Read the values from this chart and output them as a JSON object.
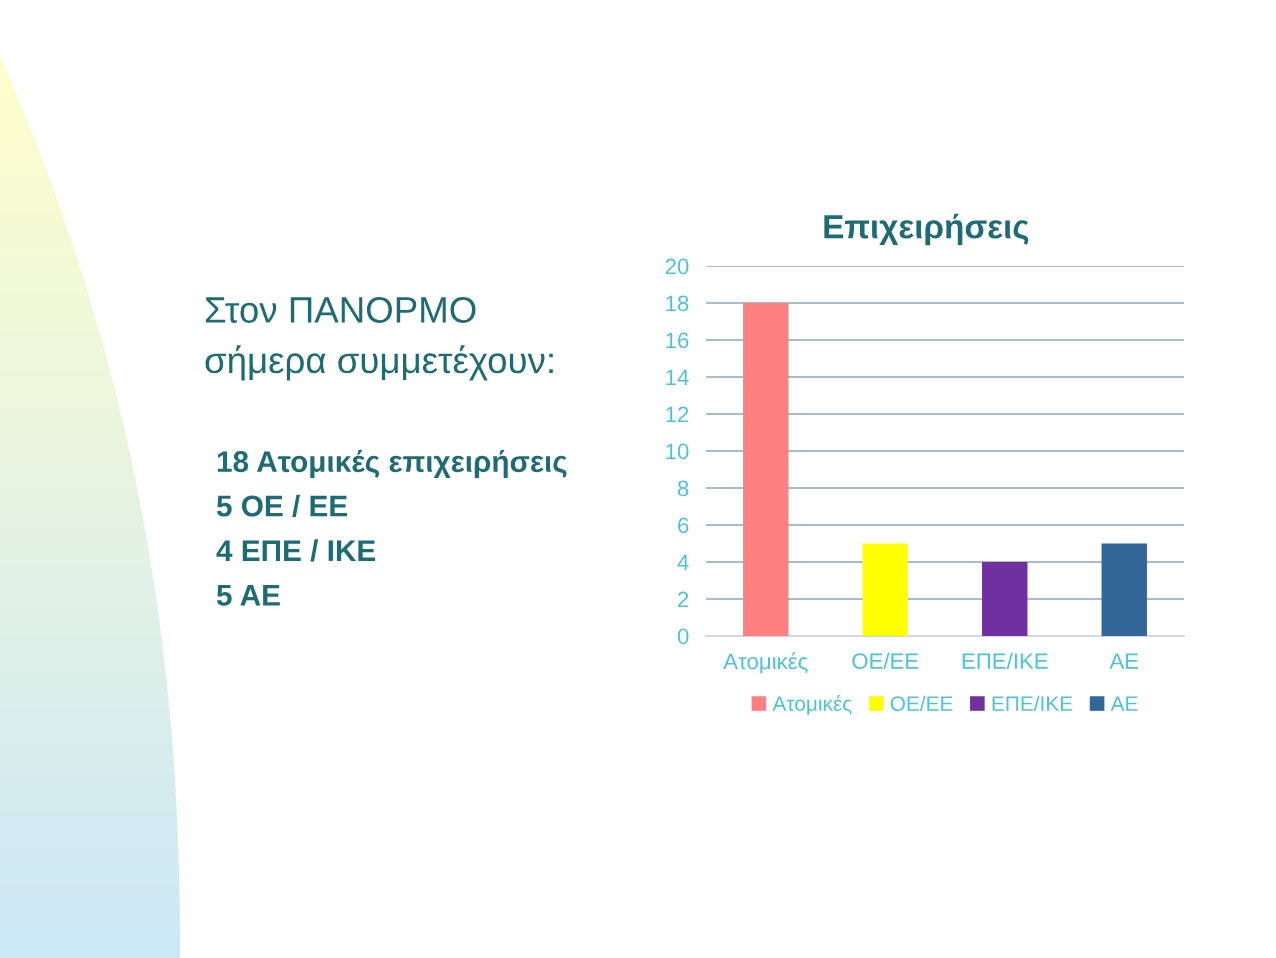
{
  "chart_data": {
    "type": "bar",
    "title": "Επιχειρήσεις",
    "categories": [
      "Ατομικές",
      "ΟΕ/ΕΕ",
      "ΕΠΕ/ΙΚΕ",
      "ΑΕ"
    ],
    "series": [
      {
        "name": "Ατομικές",
        "color": "#ff8080",
        "values": [
          18,
          null,
          null,
          null
        ]
      },
      {
        "name": "ΟΕ/ΕΕ",
        "color": "#ffff00",
        "values": [
          null,
          5,
          null,
          null
        ]
      },
      {
        "name": "ΕΠΕ/ΙΚΕ",
        "color": "#7030a0",
        "values": [
          null,
          null,
          4,
          null
        ]
      },
      {
        "name": "ΑΕ",
        "color": "#336699",
        "values": [
          null,
          null,
          null,
          5
        ]
      }
    ],
    "stacked": true,
    "ylim": [
      0,
      20
    ],
    "yticks": [
      0,
      2,
      4,
      6,
      8,
      10,
      12,
      14,
      16,
      18,
      20
    ],
    "grid": "y",
    "legend": "bottom",
    "annotations": [
      "Στον ΠΑΝΟΡΜΟ\nσήμερα συμμετέχουν:",
      "18 Ατομικές επιχειρήσεις",
      "5 ΟΕ / ΕΕ",
      "4 ΕΠΕ / ΙΚΕ",
      "5 ΑΕ"
    ]
  }
}
